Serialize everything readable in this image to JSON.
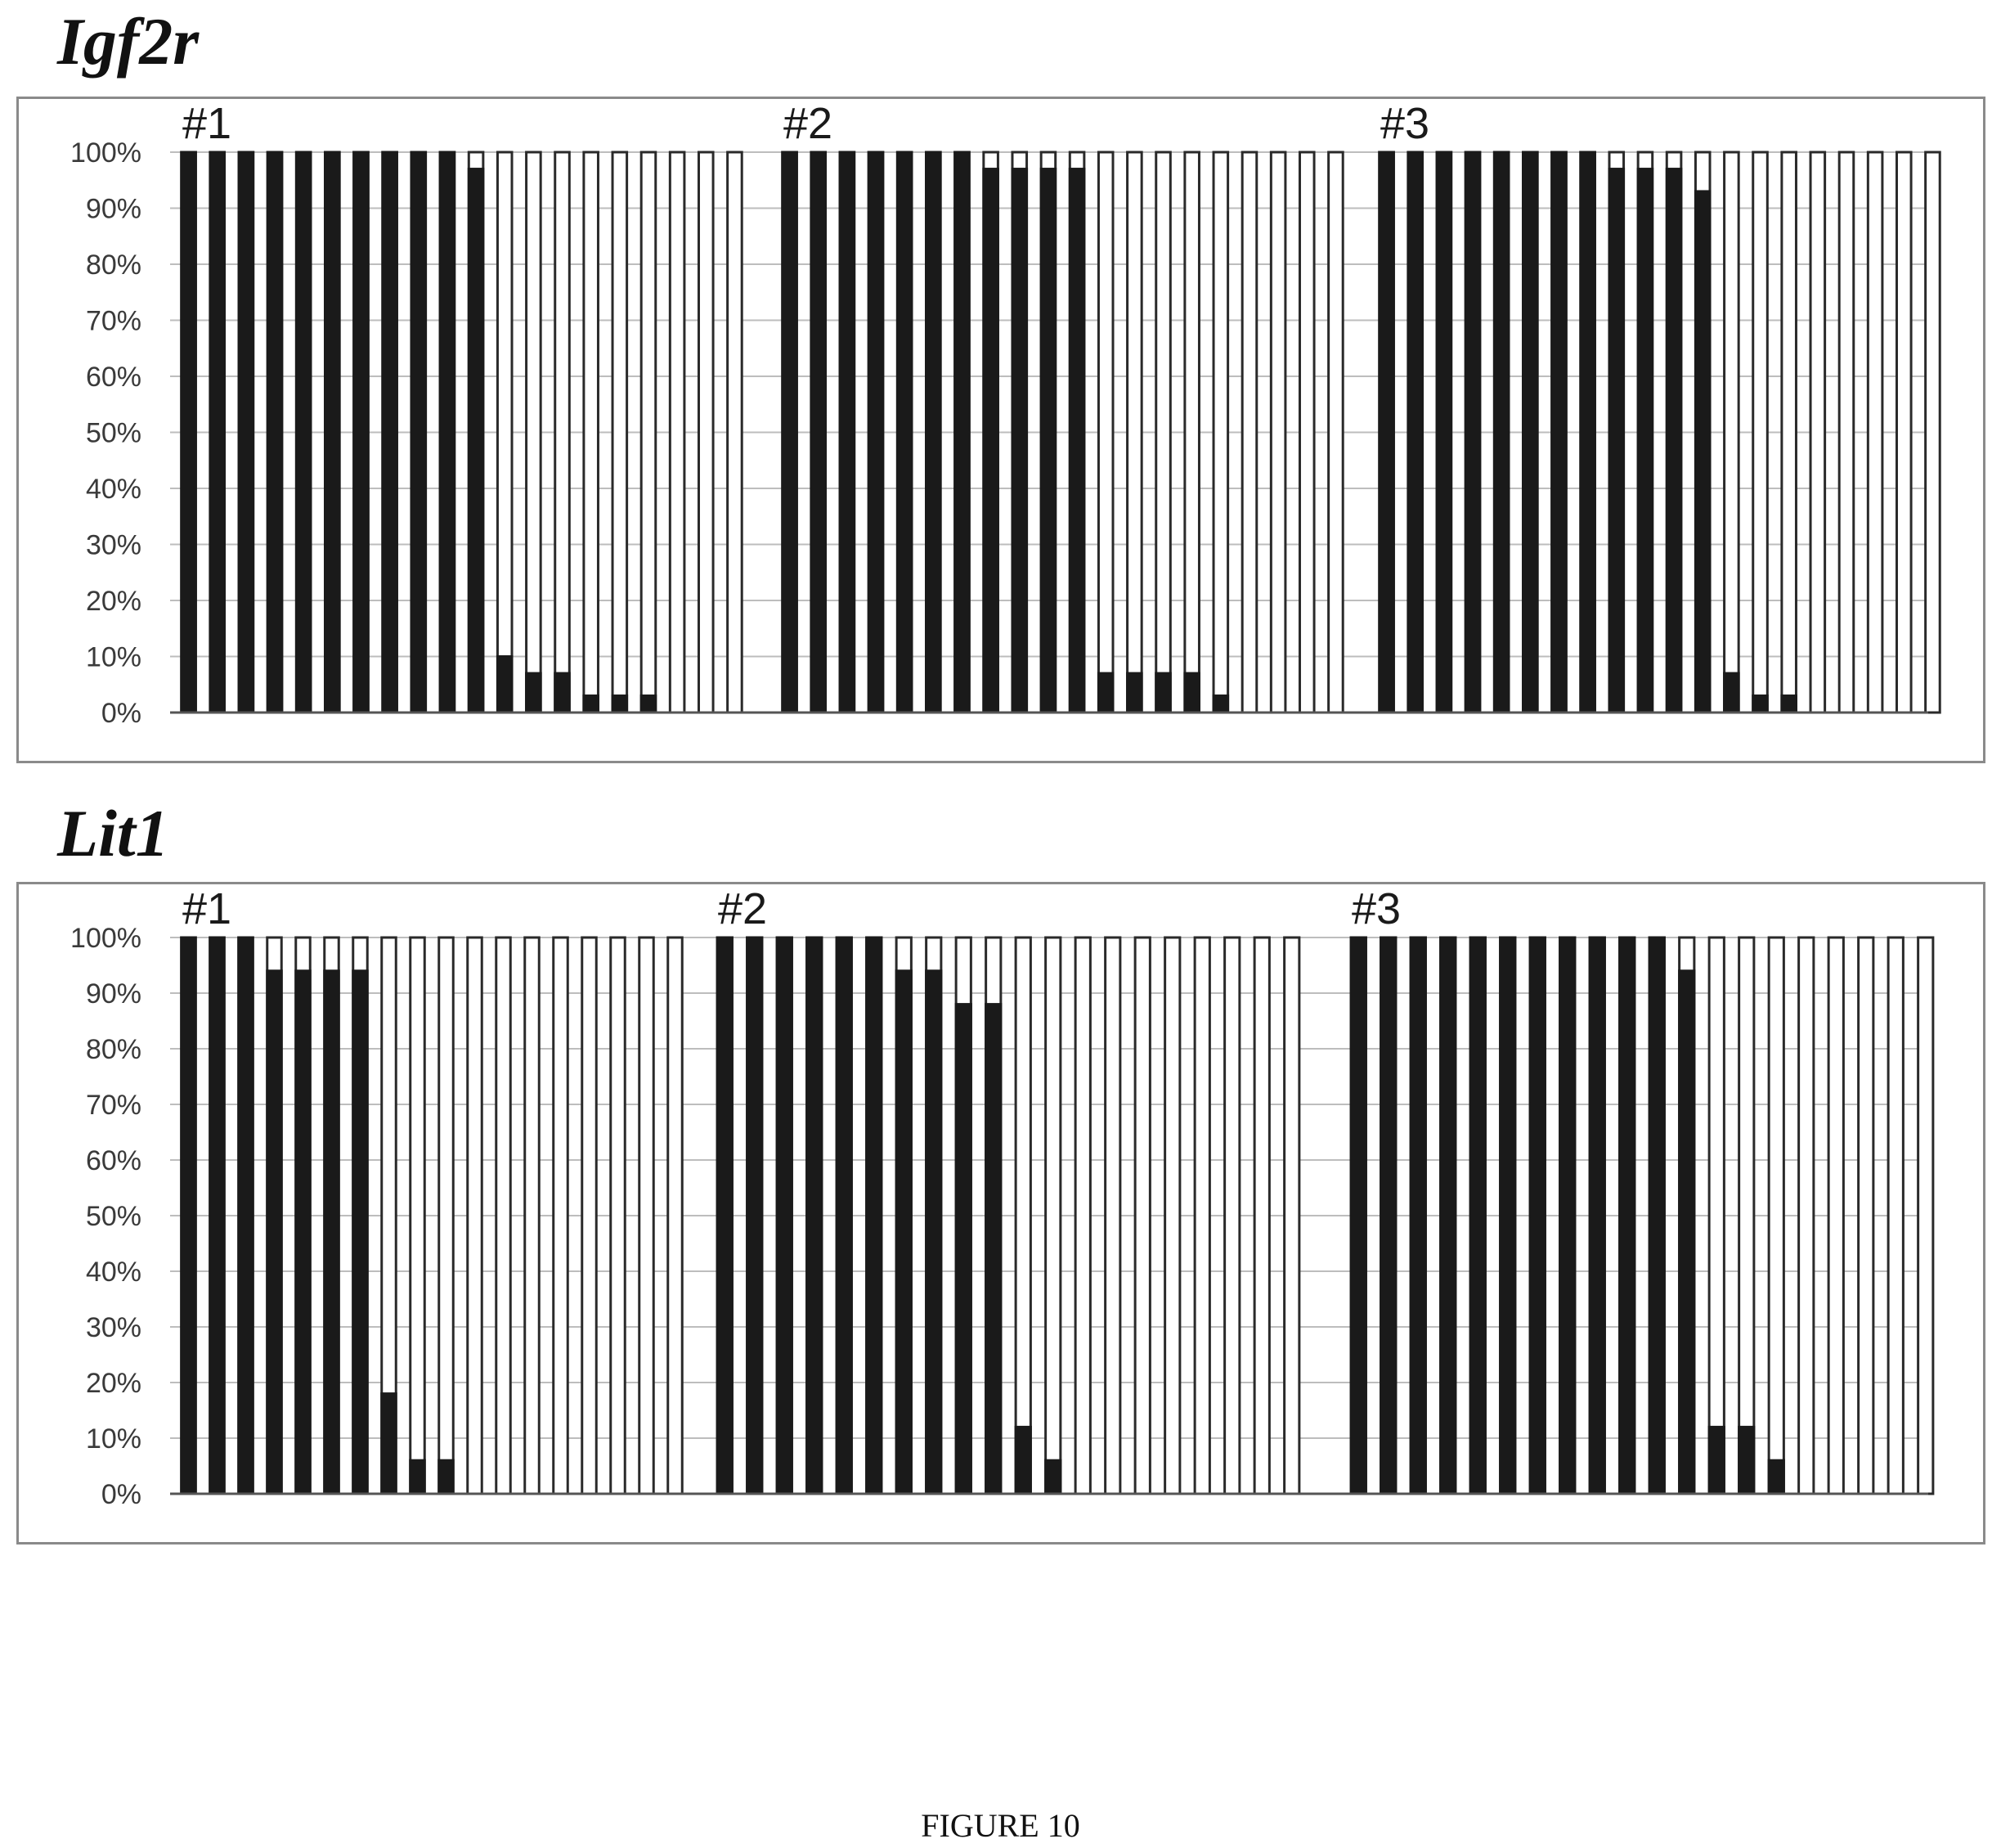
{
  "figure_caption": "FIGURE 10",
  "chart_data": [
    {
      "type": "bar",
      "title": "Igf2r",
      "ylim": [
        0,
        100
      ],
      "yticks": [
        "0%",
        "10%",
        "20%",
        "30%",
        "40%",
        "50%",
        "60%",
        "70%",
        "80%",
        "90%",
        "100%"
      ],
      "grid": true,
      "group_labels": [
        "#1",
        "#2",
        "#3"
      ],
      "groups": [
        [
          100,
          100,
          100,
          100,
          100,
          100,
          100,
          100,
          100,
          100,
          97,
          10,
          7,
          7,
          3,
          3,
          3,
          0,
          0,
          0
        ],
        [
          100,
          100,
          100,
          100,
          100,
          100,
          100,
          97,
          97,
          97,
          97,
          7,
          7,
          7,
          7,
          3,
          0,
          0,
          0,
          0
        ],
        [
          100,
          100,
          100,
          100,
          100,
          100,
          100,
          100,
          97,
          97,
          97,
          93,
          7,
          3,
          3,
          0,
          0,
          0,
          0,
          0
        ]
      ]
    },
    {
      "type": "bar",
      "title": "Lit1",
      "ylim": [
        0,
        100
      ],
      "yticks": [
        "0%",
        "10%",
        "20%",
        "30%",
        "40%",
        "50%",
        "60%",
        "70%",
        "80%",
        "90%",
        "100%"
      ],
      "grid": true,
      "group_labels": [
        "#1",
        "#2",
        "#3"
      ],
      "groups": [
        [
          100,
          100,
          100,
          94,
          94,
          94,
          94,
          18,
          6,
          6,
          0,
          0,
          0,
          0,
          0,
          0,
          0,
          0
        ],
        [
          100,
          100,
          100,
          100,
          100,
          100,
          94,
          94,
          88,
          88,
          12,
          6,
          0,
          0,
          0,
          0,
          0,
          0,
          0,
          0
        ],
        [
          100,
          100,
          100,
          100,
          100,
          100,
          100,
          100,
          100,
          100,
          100,
          94,
          12,
          12,
          6,
          0,
          0,
          0,
          0,
          0
        ]
      ]
    }
  ]
}
